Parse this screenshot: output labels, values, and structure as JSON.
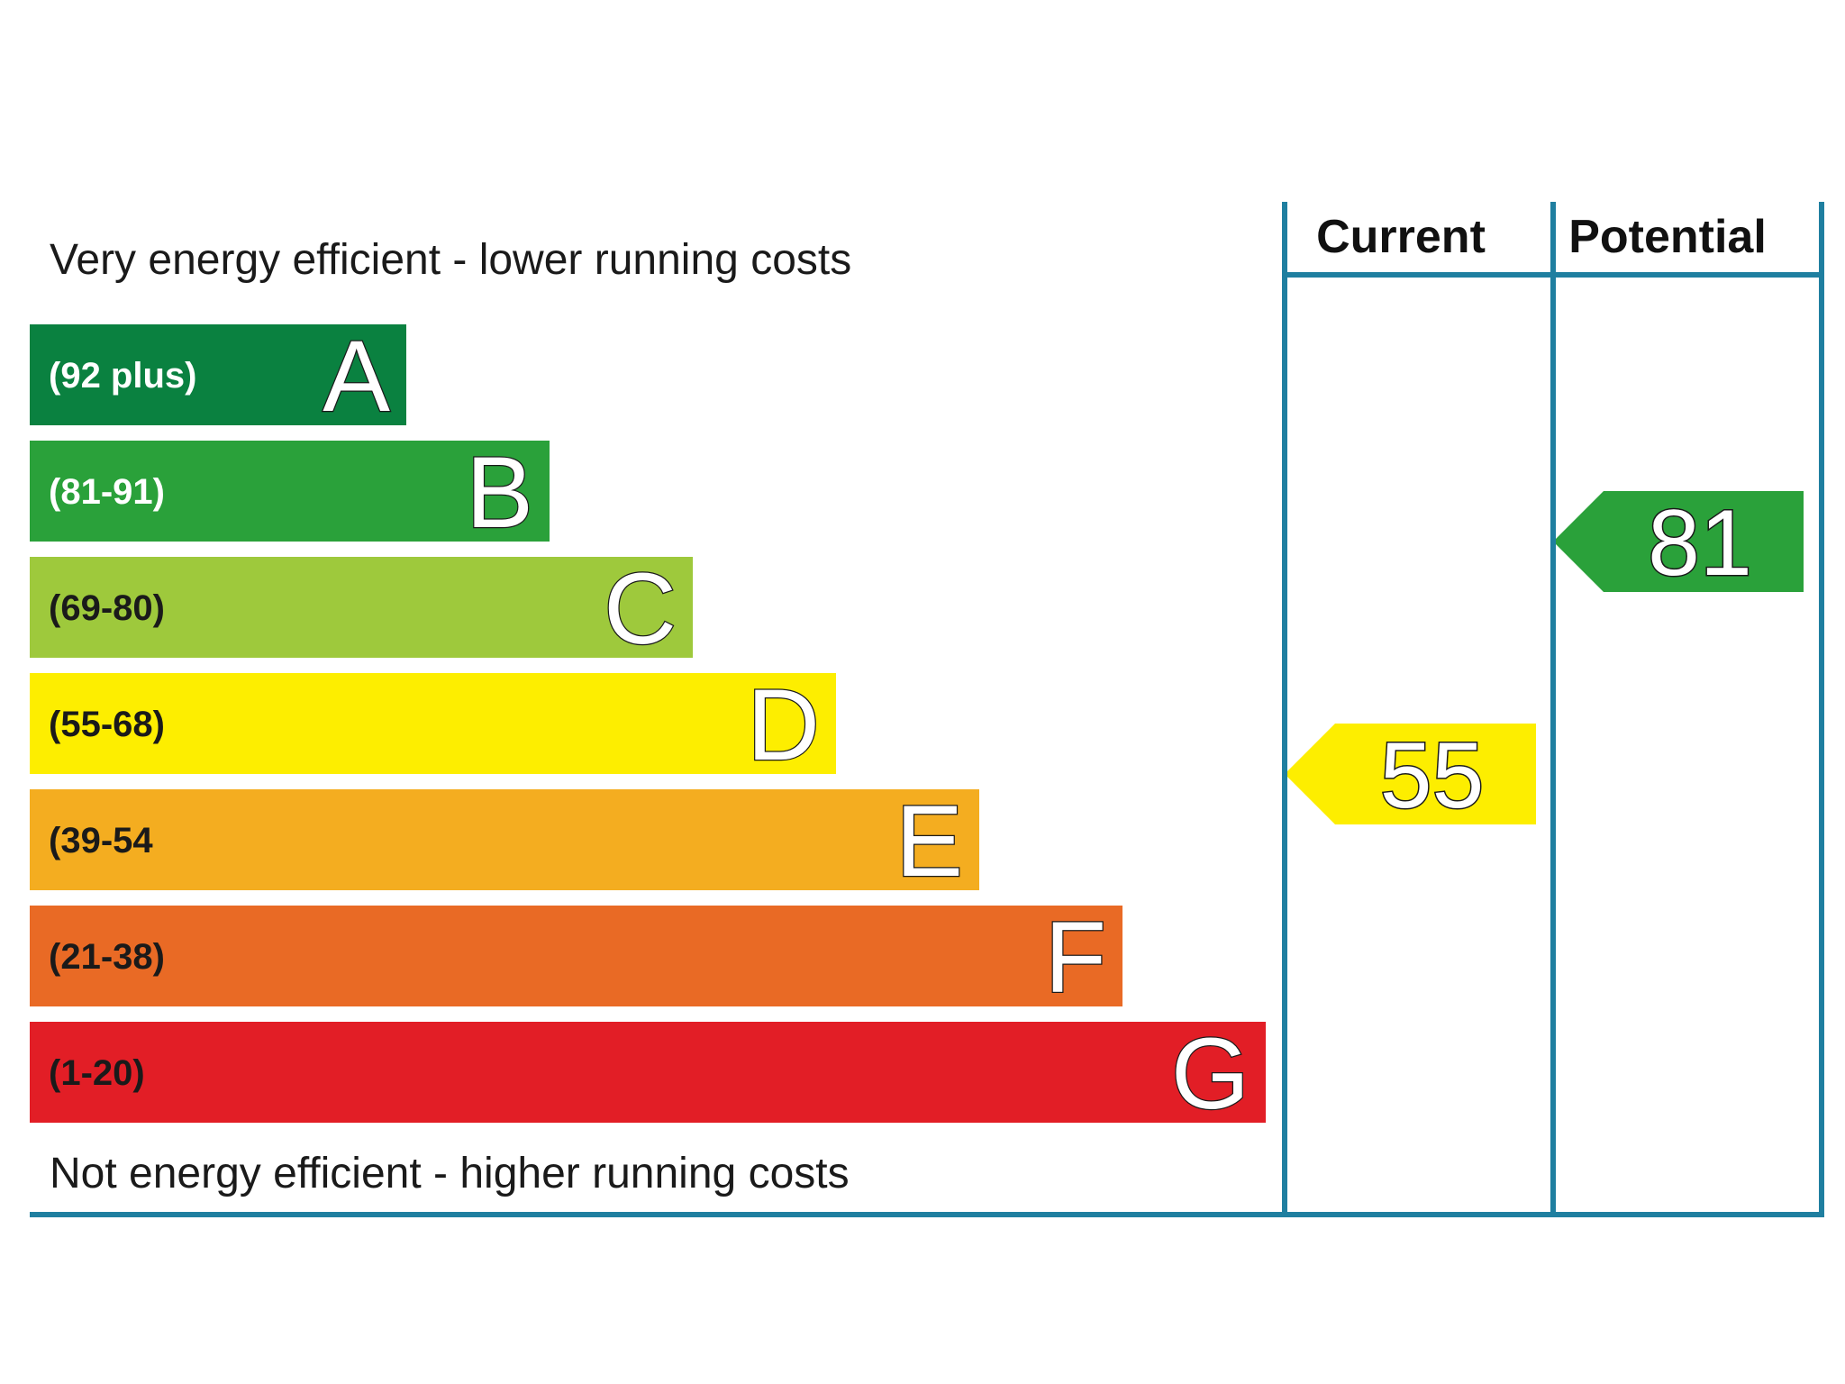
{
  "chart_data": {
    "type": "bar",
    "top_caption": "Very energy efficient - lower running costs",
    "bottom_caption": "Not energy efficient - higher running costs",
    "columns": [
      "Current",
      "Potential"
    ],
    "bands": [
      {
        "letter": "A",
        "range": "(92 plus)",
        "color": "#0a8140",
        "text_color": "#ffffff"
      },
      {
        "letter": "B",
        "range": "(81-91)",
        "color": "#2aa13a",
        "text_color": "#ffffff"
      },
      {
        "letter": "C",
        "range": "(69-80)",
        "color": "#9ec93c",
        "text_color": "#1a1a1a"
      },
      {
        "letter": "D",
        "range": "(55-68)",
        "color": "#fdee00",
        "text_color": "#1a1a1a"
      },
      {
        "letter": "E",
        "range": "(39-54",
        "color": "#f4ad20",
        "text_color": "#1a1a1a"
      },
      {
        "letter": "F",
        "range": "(21-38)",
        "color": "#e96a25",
        "text_color": "#1a1a1a"
      },
      {
        "letter": "G",
        "range": "(1-20)",
        "color": "#e21e26",
        "text_color": "#1a1a1a"
      }
    ],
    "ratings": [
      {
        "column": "Current",
        "value": 55,
        "band": "D",
        "color": "#fdee00"
      },
      {
        "column": "Potential",
        "value": 81,
        "band": "B",
        "color": "#2aa13a"
      }
    ],
    "frame_color": "#1f7fa0"
  }
}
